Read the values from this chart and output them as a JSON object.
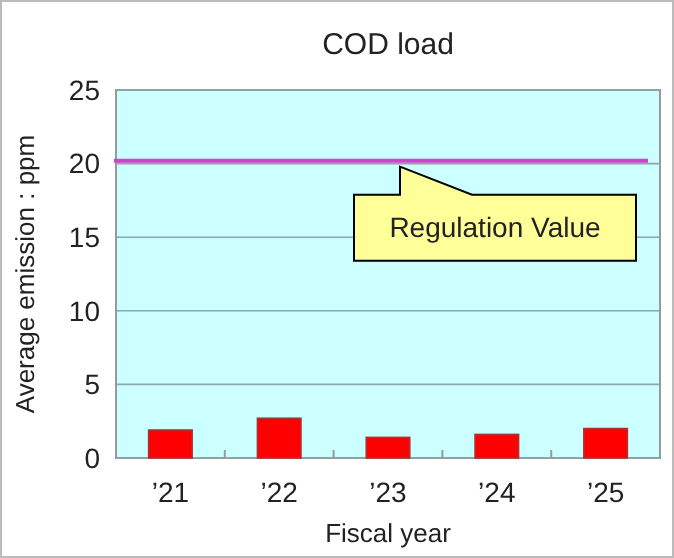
{
  "chart_data": {
    "type": "bar",
    "title": "COD load",
    "xlabel": "Fiscal year",
    "ylabel": "Average emission : ppm",
    "categories": [
      "’21",
      "’22",
      "’23",
      "’24",
      "’25"
    ],
    "values": [
      1.9,
      2.7,
      1.4,
      1.6,
      2.0
    ],
    "color": "#ff0000",
    "ylim": [
      0,
      25
    ],
    "yticks": [
      0,
      5,
      10,
      15,
      20,
      25
    ],
    "grid": "y",
    "ref_lines": [
      {
        "axis": "y",
        "value": 20.2,
        "label": "Regulation Value",
        "color": "#cc44cc"
      }
    ]
  }
}
